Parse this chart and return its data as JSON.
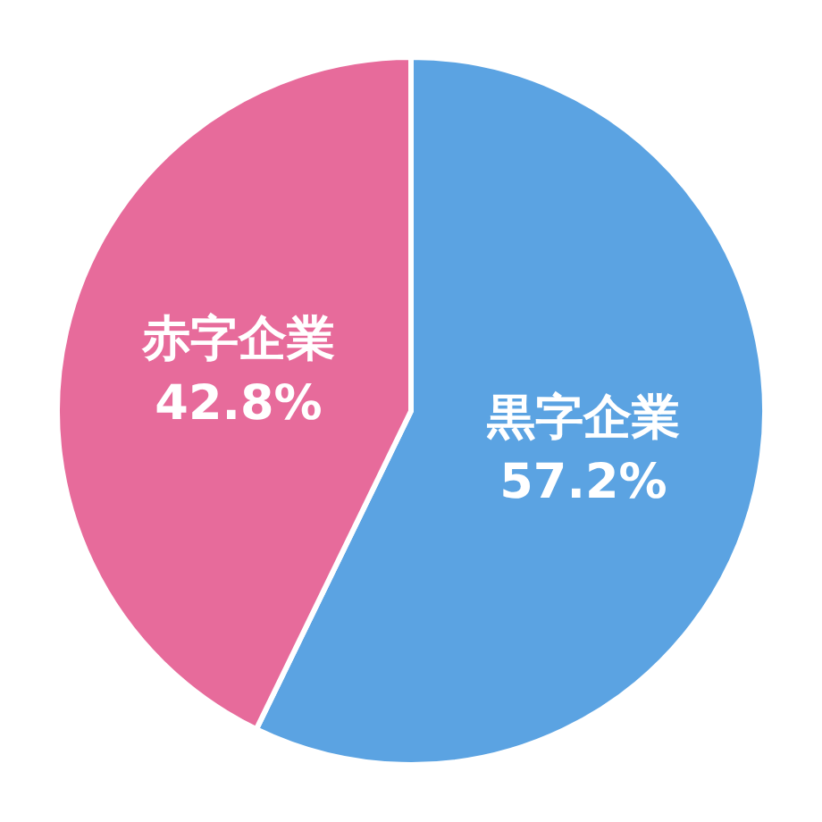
{
  "chart_data": {
    "type": "pie",
    "categories": [
      "黒字企業",
      "赤字企業"
    ],
    "values": [
      57.2,
      42.8
    ],
    "colors": [
      "#5ba3e2",
      "#e76b9b"
    ],
    "value_labels": [
      "57.2%",
      "42.8%"
    ]
  }
}
